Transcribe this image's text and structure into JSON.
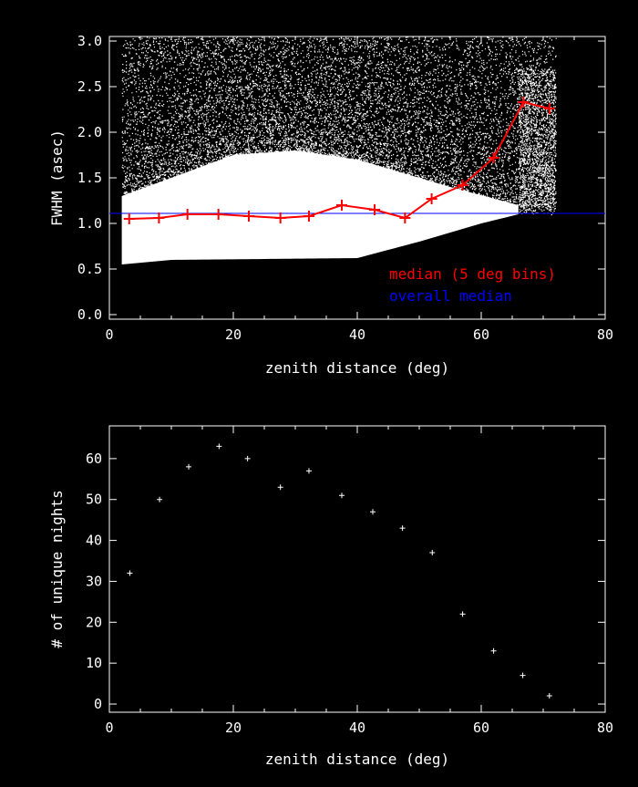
{
  "chart_data": [
    {
      "type": "scatter",
      "xlabel": "zenith distance (deg)",
      "ylabel": "FWHM (asec)",
      "xlim": [
        0,
        80
      ],
      "ylim": [
        -0.05,
        3.05
      ],
      "x_ticks": [
        "0",
        "20",
        "40",
        "60",
        "80"
      ],
      "y_ticks": [
        "0.0",
        "0.5",
        "1.0",
        "1.5",
        "2.0",
        "2.5",
        "3.0"
      ],
      "series": [
        {
          "name": "median (5 deg bins)",
          "color": "#ff0000",
          "style": "line-with-plus-markers",
          "x": [
            3.2,
            8.0,
            12.6,
            17.6,
            22.5,
            27.6,
            32.2,
            37.5,
            42.8,
            47.7,
            52.0,
            57.0,
            62.0,
            66.8,
            71.0
          ],
          "y": [
            1.05,
            1.06,
            1.1,
            1.1,
            1.08,
            1.06,
            1.08,
            1.2,
            1.15,
            1.06,
            1.27,
            1.42,
            1.72,
            2.33,
            2.26
          ]
        },
        {
          "name": "overall median",
          "color": "#0000ff",
          "style": "horizontal-line",
          "y": 1.11
        }
      ],
      "scatter_cloud": {
        "color": "#ffffff",
        "description_x_range": [
          2,
          72
        ],
        "lower_envelope": [
          [
            2,
            0.55
          ],
          [
            10,
            0.6
          ],
          [
            40,
            0.62
          ],
          [
            50,
            0.8
          ],
          [
            60,
            1.0
          ],
          [
            66,
            1.1
          ]
        ],
        "dense_core_upper": [
          [
            2,
            1.3
          ],
          [
            20,
            1.75
          ],
          [
            30,
            1.8
          ],
          [
            40,
            1.7
          ],
          [
            55,
            1.4
          ],
          [
            66,
            1.2
          ]
        ]
      }
    },
    {
      "type": "scatter",
      "xlabel": "zenith distance (deg)",
      "ylabel": "# of unique nights",
      "xlim": [
        0,
        80
      ],
      "ylim": [
        -2,
        68
      ],
      "x_ticks": [
        "0",
        "20",
        "40",
        "60",
        "80"
      ],
      "y_ticks": [
        "0",
        "10",
        "20",
        "30",
        "40",
        "50",
        "60"
      ],
      "series": [
        {
          "color": "#ffffff",
          "style": "plus-markers",
          "x": [
            3.3,
            8.1,
            12.8,
            17.7,
            22.3,
            27.6,
            32.2,
            37.5,
            42.5,
            47.3,
            52.1,
            57.0,
            62.0,
            66.7,
            71.0
          ],
          "y": [
            32,
            50,
            58,
            63,
            60,
            53,
            57,
            51,
            47,
            43,
            37,
            22,
            13,
            7,
            2
          ]
        }
      ]
    }
  ],
  "legend": {
    "median_label": "median (5 deg bins)",
    "overall_label": "overall median",
    "median_color": "#ff0000",
    "overall_color": "#0000ff"
  }
}
